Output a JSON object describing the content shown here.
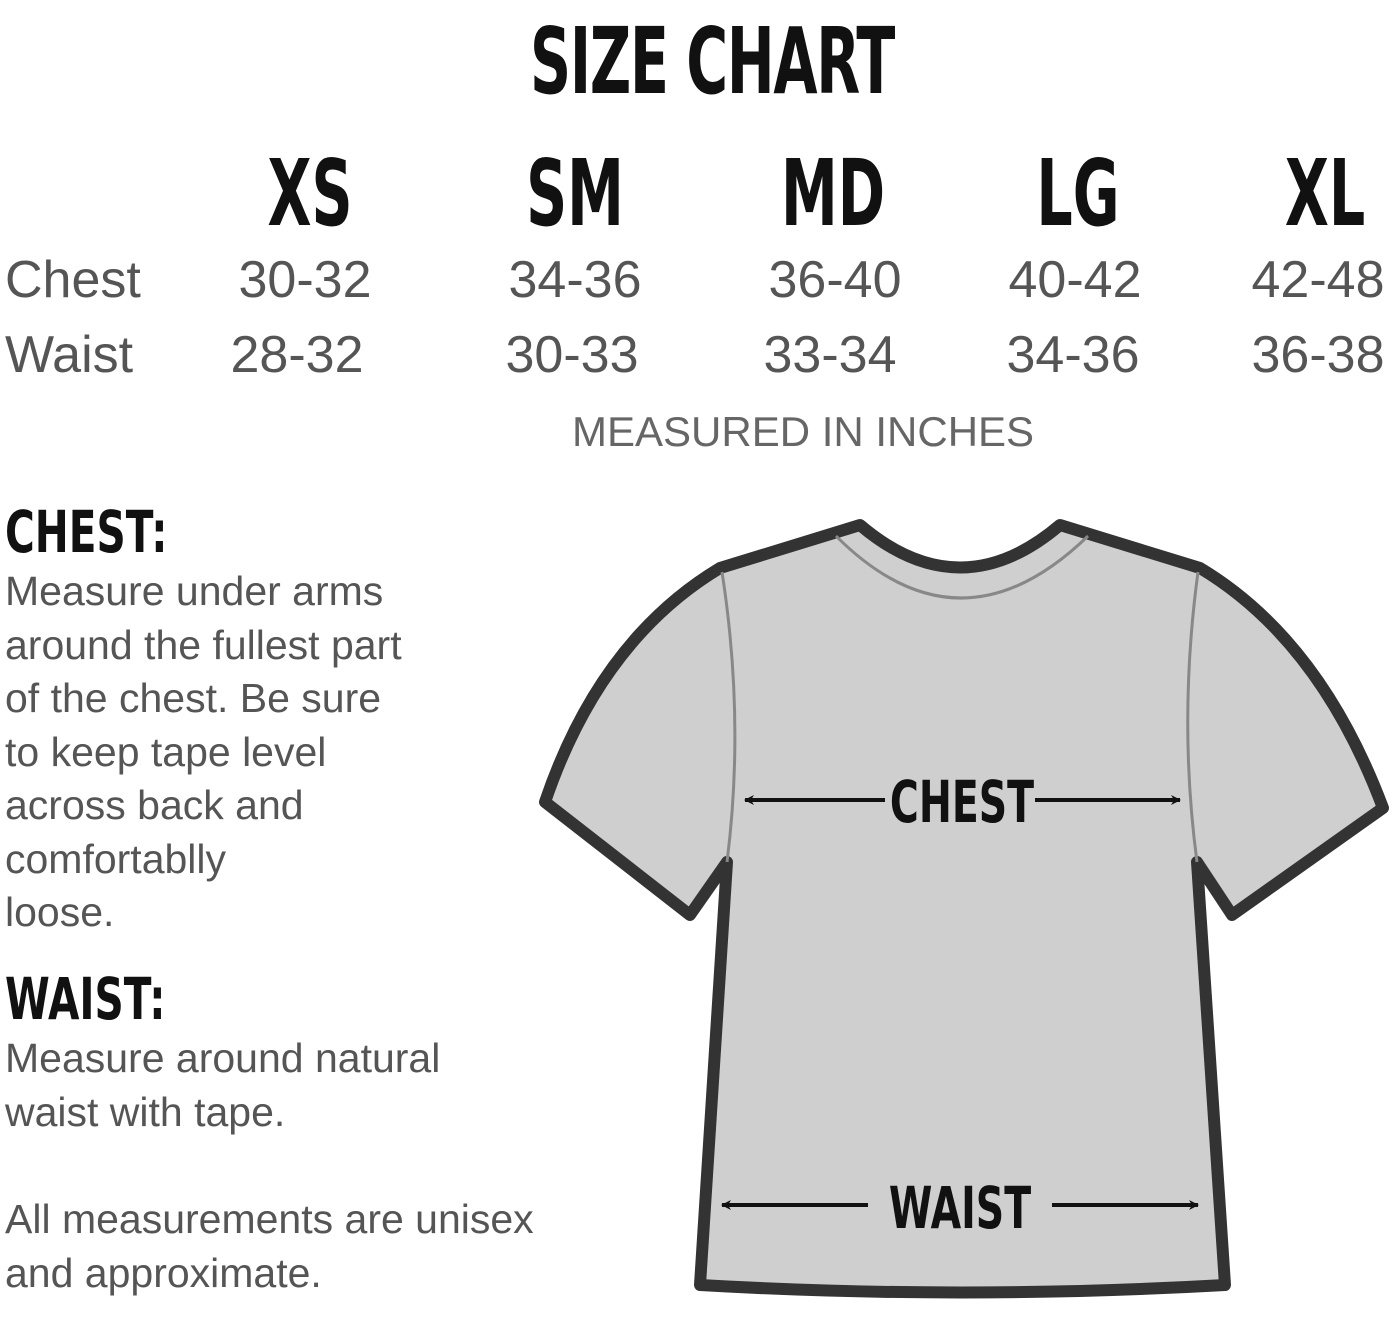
{
  "title": "SIZE CHART",
  "sizes": [
    "XS",
    "SM",
    "MD",
    "LG",
    "XL"
  ],
  "rows": [
    {
      "label": "Chest",
      "values": [
        "30-32",
        "34-36",
        "36-40",
        "40-42",
        "42-48"
      ]
    },
    {
      "label": "Waist",
      "values": [
        "28-32",
        "30-33",
        "33-34",
        "34-36",
        "36-38"
      ]
    }
  ],
  "unit_note": "MEASURED IN INCHES",
  "chest_section": {
    "heading": "CHEST:",
    "lines": [
      "Measure under arms",
      "around the fullest part",
      "of the chest.  Be sure",
      "to keep tape level",
      "across back and",
      "comfortablly",
      "loose."
    ]
  },
  "waist_section": {
    "heading": "WAIST:",
    "lines": [
      "Measure around natural",
      "waist with tape."
    ]
  },
  "footer_lines": [
    "All measurements are unisex",
    "and approximate."
  ],
  "diagram": {
    "chest_label": "CHEST",
    "waist_label": "WAIST",
    "shirt_fill": "#cfcfcf",
    "shirt_outline": "#333333"
  }
}
